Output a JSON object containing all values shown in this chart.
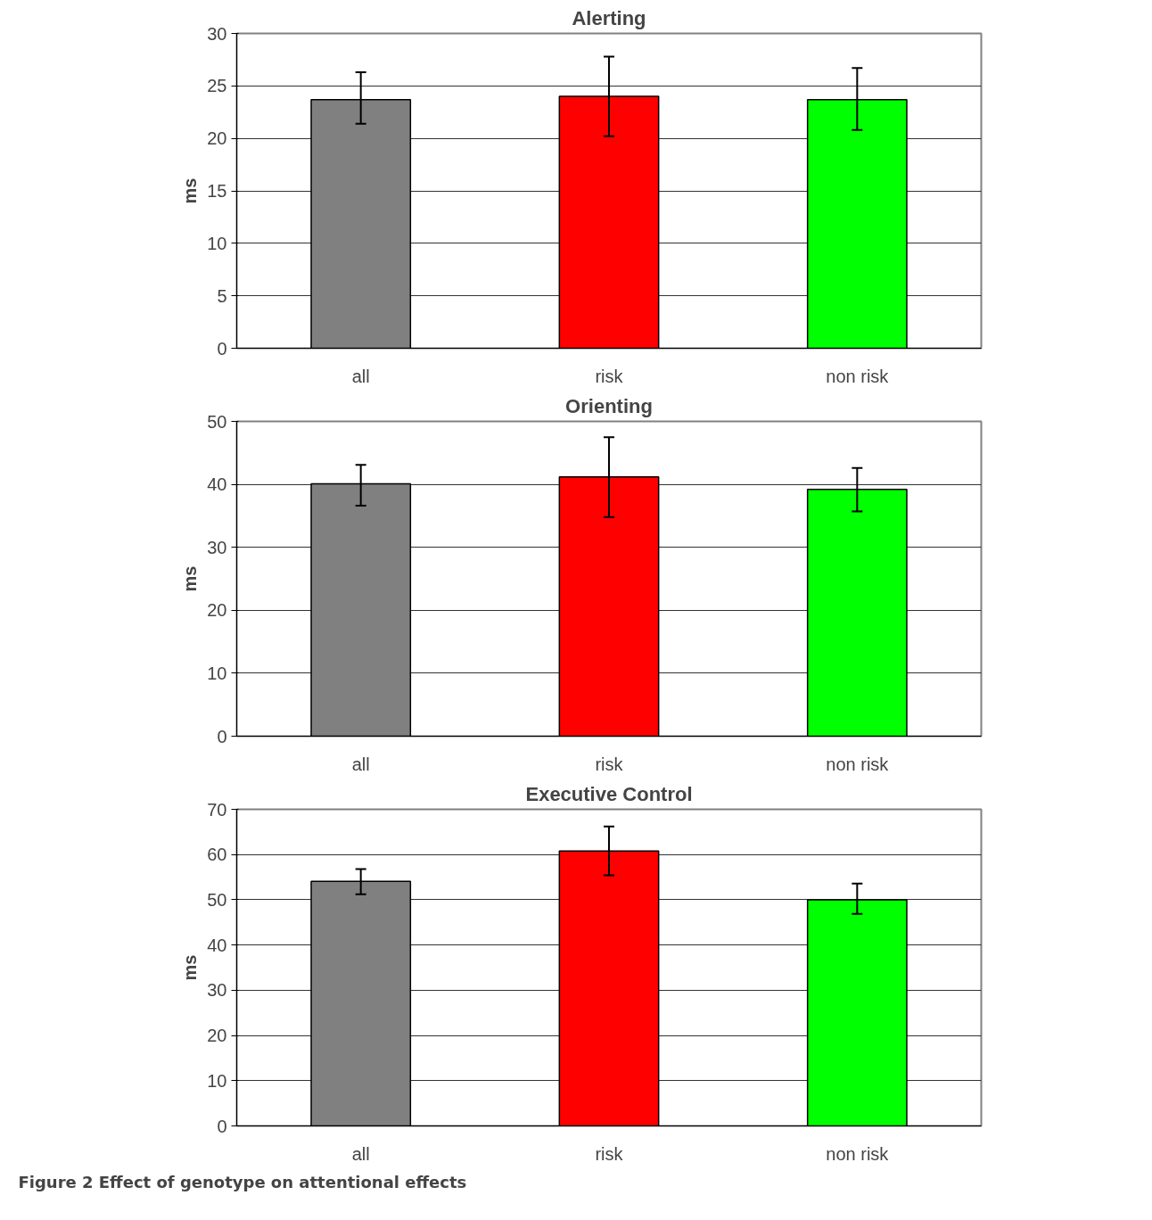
{
  "chart_data": [
    {
      "type": "bar",
      "title": "Alerting",
      "ylabel": "ms",
      "categories": [
        "all",
        "risk",
        "non risk"
      ],
      "values": [
        23.7,
        24.0,
        23.7
      ],
      "colors": [
        "#808080",
        "#ff0000",
        "#00ff00"
      ],
      "errors": [
        [
          21.4,
          26.3
        ],
        [
          20.2,
          27.8
        ],
        [
          20.8,
          26.7
        ]
      ],
      "ylim": [
        0,
        30
      ],
      "yticks": [
        0,
        5,
        10,
        15,
        20,
        25,
        30
      ],
      "grid": "y"
    },
    {
      "type": "bar",
      "title": "Orienting",
      "ylabel": "ms",
      "categories": [
        "all",
        "risk",
        "non risk"
      ],
      "values": [
        40.1,
        41.2,
        39.2
      ],
      "colors": [
        "#808080",
        "#ff0000",
        "#00ff00"
      ],
      "errors": [
        [
          36.6,
          43.1
        ],
        [
          34.8,
          47.5
        ],
        [
          35.7,
          42.6
        ]
      ],
      "ylim": [
        0,
        50
      ],
      "yticks": [
        0,
        10,
        20,
        30,
        40,
        50
      ],
      "grid": "y"
    },
    {
      "type": "bar",
      "title": "Executive Control",
      "ylabel": "ms",
      "categories": [
        "all",
        "risk",
        "non risk"
      ],
      "values": [
        54.1,
        60.8,
        50.0
      ],
      "colors": [
        "#808080",
        "#ff0000",
        "#00ff00"
      ],
      "errors": [
        [
          51.2,
          56.8
        ],
        [
          55.4,
          66.2
        ],
        [
          46.9,
          53.6
        ]
      ],
      "ylim": [
        0,
        70
      ],
      "yticks": [
        0,
        10,
        20,
        30,
        40,
        50,
        60,
        70
      ],
      "grid": "y",
      "annotations": [
        "Figure 2 Effect of genotype on attentional effects"
      ]
    }
  ]
}
